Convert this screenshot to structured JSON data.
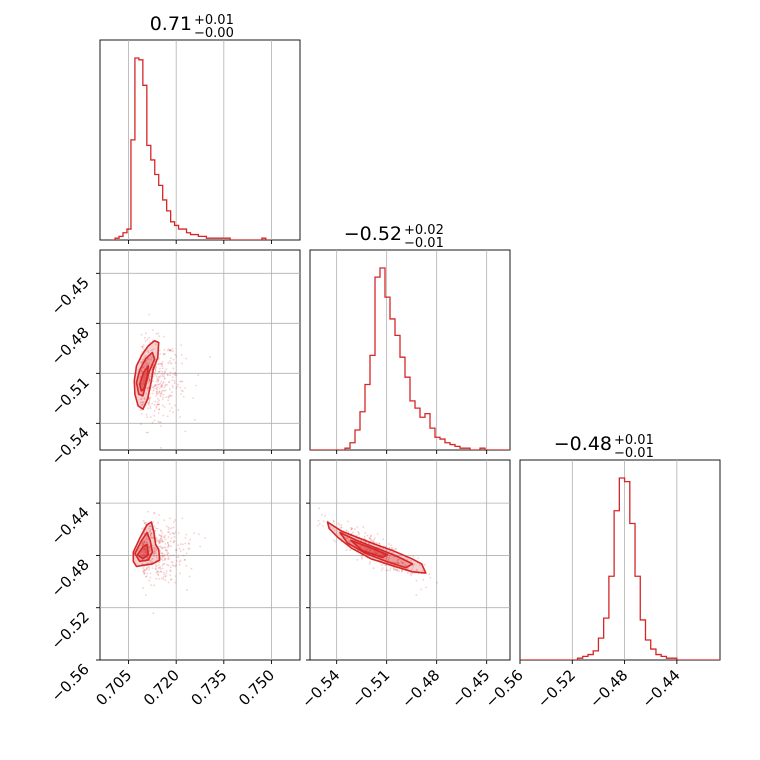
{
  "chart_data": {
    "type": "corner",
    "color": "#d62728",
    "parameters": [
      {
        "title_median": "0.71",
        "title_plus": "+0.01",
        "title_minus": "−0.00",
        "range": [
          0.696,
          0.759
        ],
        "ticks": [
          0.705,
          0.72,
          0.735,
          0.75
        ],
        "tick_labels": [
          "0.705",
          "0.720",
          "0.735",
          "0.750"
        ]
      },
      {
        "title_median": "−0.52",
        "title_plus": "+0.02",
        "title_minus": "−0.01",
        "range": [
          -0.556,
          -0.436
        ],
        "ticks": [
          -0.54,
          -0.51,
          -0.48,
          -0.45
        ],
        "tick_labels": [
          "−0.54",
          "−0.51",
          "−0.48",
          "−0.45"
        ]
      },
      {
        "title_median": "−0.48",
        "title_plus": "+0.01",
        "title_minus": "−0.01",
        "range": [
          -0.56,
          -0.407
        ],
        "ticks": [
          -0.56,
          -0.52,
          -0.48,
          -0.44
        ],
        "tick_labels": [
          "−0.56",
          "−0.52",
          "−0.48",
          "−0.44"
        ]
      }
    ],
    "histograms": [
      {
        "param": 0,
        "bin_width": 0.00125,
        "bins_start": 0.6995,
        "counts": [
          0,
          1,
          2,
          4,
          6,
          55,
          100,
          99,
          85,
          52,
          44,
          36,
          30,
          22,
          16,
          10,
          8,
          6,
          6,
          4,
          3,
          3,
          2,
          2,
          1,
          1,
          1,
          1,
          1,
          1,
          0,
          0,
          0,
          0,
          0,
          0,
          0,
          0,
          1,
          0
        ]
      },
      {
        "param": 1,
        "bin_width": 0.003,
        "bins_start": -0.556,
        "counts": [
          0,
          0,
          0,
          0,
          0,
          0,
          0,
          1,
          4,
          11,
          21,
          36,
          52,
          95,
          100,
          84,
          72,
          63,
          51,
          40,
          27,
          23,
          18,
          20,
          12,
          7,
          6,
          4,
          3,
          2,
          1,
          1,
          0,
          0,
          1,
          0,
          0,
          0,
          0,
          0
        ]
      },
      {
        "param": 2,
        "bin_width": 0.004,
        "bins_start": -0.56,
        "counts": [
          0,
          0,
          0,
          0,
          0,
          0,
          0,
          0,
          0,
          0,
          0,
          1,
          2,
          3,
          5,
          12,
          23,
          46,
          82,
          100,
          98,
          75,
          46,
          22,
          11,
          6,
          3,
          2,
          1,
          1,
          0,
          0,
          0,
          0,
          0,
          0,
          0,
          0,
          0,
          0
        ]
      }
    ],
    "contours_2d": [
      {
        "x_param": 0,
        "y_param": 1,
        "levels": [
          [
            [
              0.7068,
              -0.5145
            ],
            [
              0.7075,
              -0.5055
            ],
            [
              0.7092,
              -0.499
            ],
            [
              0.7112,
              -0.4935
            ],
            [
              0.7132,
              -0.4905
            ],
            [
              0.7145,
              -0.4915
            ],
            [
              0.7142,
              -0.5005
            ],
            [
              0.7128,
              -0.5075
            ],
            [
              0.7122,
              -0.5145
            ],
            [
              0.711,
              -0.5255
            ],
            [
              0.7095,
              -0.5315
            ],
            [
              0.708,
              -0.5295
            ],
            [
              0.707,
              -0.5225
            ]
          ],
          [
            [
              0.7075,
              -0.5155
            ],
            [
              0.7085,
              -0.508
            ],
            [
              0.7105,
              -0.501
            ],
            [
              0.7125,
              -0.4975
            ],
            [
              0.7132,
              -0.5015
            ],
            [
              0.7115,
              -0.509
            ],
            [
              0.7105,
              -0.5165
            ],
            [
              0.7095,
              -0.5235
            ],
            [
              0.7082,
              -0.5225
            ]
          ],
          [
            [
              0.7085,
              -0.5165
            ],
            [
              0.7097,
              -0.5095
            ],
            [
              0.7112,
              -0.5055
            ],
            [
              0.7108,
              -0.5125
            ],
            [
              0.7098,
              -0.5195
            ],
            [
              0.709,
              -0.5205
            ]
          ]
        ],
        "scatter_center": [
          0.7105,
          -0.514
        ],
        "scatter_spread": [
          0.0045,
          0.012
        ]
      },
      {
        "x_param": 0,
        "y_param": 2,
        "levels": [
          [
            [
              0.7065,
              -0.4775
            ],
            [
              0.7085,
              -0.467
            ],
            [
              0.7108,
              -0.4565
            ],
            [
              0.7122,
              -0.4545
            ],
            [
              0.713,
              -0.4625
            ],
            [
              0.7135,
              -0.4715
            ],
            [
              0.7145,
              -0.4755
            ],
            [
              0.7148,
              -0.4835
            ],
            [
              0.7125,
              -0.4865
            ],
            [
              0.7098,
              -0.4875
            ],
            [
              0.7075,
              -0.4885
            ],
            [
              0.7065,
              -0.4845
            ]
          ],
          [
            [
              0.707,
              -0.4785
            ],
            [
              0.709,
              -0.469
            ],
            [
              0.7108,
              -0.4625
            ],
            [
              0.7118,
              -0.4685
            ],
            [
              0.7125,
              -0.4775
            ],
            [
              0.7112,
              -0.4835
            ],
            [
              0.7085,
              -0.4845
            ]
          ],
          [
            [
              0.7078,
              -0.4795
            ],
            [
              0.7095,
              -0.4735
            ],
            [
              0.7108,
              -0.4715
            ],
            [
              0.7112,
              -0.4795
            ],
            [
              0.7095,
              -0.4825
            ]
          ]
        ],
        "scatter_center": [
          0.711,
          -0.476
        ],
        "scatter_spread": [
          0.0045,
          0.012
        ]
      },
      {
        "x_param": 1,
        "y_param": 2,
        "levels": [
          [
            [
              -0.5455,
              -0.4545
            ],
            [
              -0.537,
              -0.4615
            ],
            [
              -0.527,
              -0.4665
            ],
            [
              -0.517,
              -0.4715
            ],
            [
              -0.506,
              -0.4765
            ],
            [
              -0.495,
              -0.4825
            ],
            [
              -0.489,
              -0.4865
            ],
            [
              -0.4865,
              -0.4935
            ],
            [
              -0.4945,
              -0.4925
            ],
            [
              -0.5075,
              -0.4875
            ],
            [
              -0.5195,
              -0.4825
            ],
            [
              -0.531,
              -0.4745
            ],
            [
              -0.539,
              -0.4665
            ],
            [
              -0.5445,
              -0.4595
            ]
          ],
          [
            [
              -0.538,
              -0.4625
            ],
            [
              -0.528,
              -0.4685
            ],
            [
              -0.516,
              -0.4745
            ],
            [
              -0.504,
              -0.4805
            ],
            [
              -0.4945,
              -0.4865
            ],
            [
              -0.4985,
              -0.4895
            ],
            [
              -0.5105,
              -0.4845
            ],
            [
              -0.5225,
              -0.4785
            ],
            [
              -0.5335,
              -0.4705
            ]
          ],
          [
            [
              -0.5315,
              -0.4685
            ],
            [
              -0.521,
              -0.4735
            ],
            [
              -0.5095,
              -0.4795
            ],
            [
              -0.5125,
              -0.4815
            ],
            [
              -0.5245,
              -0.4765
            ]
          ]
        ],
        "scatter_center": [
          -0.516,
          -0.477
        ],
        "scatter_spread": [
          0.012,
          0.01
        ]
      }
    ]
  }
}
